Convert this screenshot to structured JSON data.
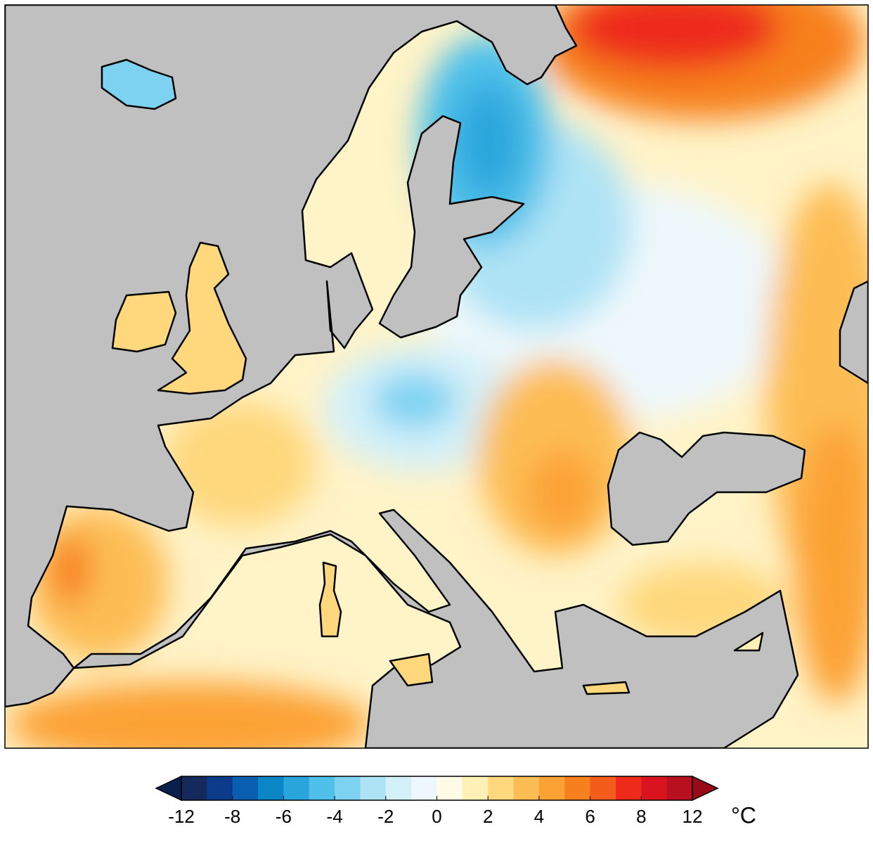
{
  "colorbar": {
    "type": "colorbar",
    "levels": [
      -12,
      -10,
      -8,
      -7,
      -6,
      -5,
      -4,
      -3,
      -2,
      -1,
      0,
      1,
      2,
      3,
      4,
      5,
      6,
      7,
      8,
      10,
      12
    ],
    "colors": [
      "#142a5c",
      "#0b3b8a",
      "#0a5eb0",
      "#0a86c6",
      "#2aa5dc",
      "#4ec0ea",
      "#7dd2f2",
      "#aee3f5",
      "#d3f0f9",
      "#eef8fc",
      "#fffbe6",
      "#fff0b5",
      "#ffd87e",
      "#fdbd55",
      "#fca235",
      "#f7801e",
      "#f35c1b",
      "#ee2a1a",
      "#d9141e",
      "#b8101e"
    ],
    "under_color": "#0a1f4c",
    "over_color": "#980a18",
    "ticks": [
      -12,
      -8,
      -6,
      -4,
      -2,
      0,
      2,
      4,
      6,
      8,
      12
    ],
    "unit": "°C"
  }
}
